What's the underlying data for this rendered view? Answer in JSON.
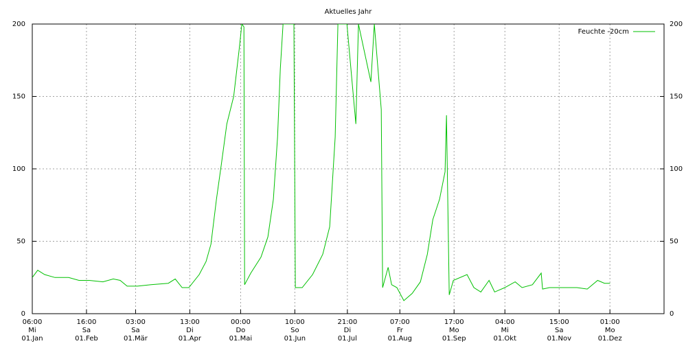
{
  "chart_data": {
    "type": "line",
    "title": "Aktuelles Jahr",
    "x": [
      0.25,
      3.4,
      7.4,
      13.4,
      21.3,
      27.3,
      33.3,
      41.2,
      47.2,
      51.2,
      55.2,
      61.2,
      69.1,
      79.1,
      83.1,
      87.1,
      91.0,
      97.0,
      101.0,
      103.8,
      107.0,
      109.8,
      113.0,
      117.0,
      120.2,
      121.7,
      122.9,
      123.3,
      126.9,
      132.8,
      136.8,
      140.0,
      142.4,
      144.0,
      145.6,
      148.8,
      151.9,
      152.7,
      156.7,
      162.7,
      168.6,
      172.6,
      175.8,
      177.4,
      179.4,
      182.6,
      187.8,
      189.3,
      196.5,
      198.5,
      202.5,
      203.3,
      206.5,
      208.5,
      211.6,
      215.6,
      220.4,
      225.2,
      229.2,
      232.4,
      236.3,
      239.5,
      240.3,
      241.1,
      241.9,
      244.3,
      252.2,
      256.2,
      260.2,
      265.0,
      268.2,
      274.1,
      280.1,
      284.1,
      290.1,
      295.2,
      296.0,
      300.0,
      308.0,
      315.9,
      321.9,
      327.9,
      331.9,
      335.1
    ],
    "series": [
      {
        "name": "Feuchte -20cm",
        "color": "#00c000",
        "values": [
          25,
          30,
          27,
          25,
          25,
          23,
          23,
          22,
          24,
          23,
          19,
          19,
          20,
          21,
          24,
          18,
          18,
          27,
          36,
          48,
          79,
          103,
          131,
          150,
          183,
          200,
          198,
          20,
          28,
          39,
          53,
          79,
          122,
          169,
          200,
          200,
          200,
          18,
          18,
          27,
          41,
          60,
          122,
          200,
          200,
          200,
          131,
          200,
          160,
          200,
          141,
          18,
          32,
          20,
          18,
          9,
          14,
          22,
          41,
          65,
          79,
          98,
          137,
          74,
          13,
          23,
          27,
          18,
          15,
          23,
          15,
          18,
          22,
          18,
          20,
          28,
          17,
          18,
          18,
          18,
          17,
          23,
          21,
          21
        ]
      }
    ],
    "xlim": [
      0.25,
      366.4
    ],
    "xticks": [
      {
        "value": 0.25,
        "label": [
          "06:00",
          "Mi",
          "01.Jan"
        ]
      },
      {
        "value": 31.667,
        "label": [
          "16:00",
          "Sa",
          "01.Feb"
        ]
      },
      {
        "value": 60.125,
        "label": [
          "03:00",
          "Sa",
          "01.Mär"
        ]
      },
      {
        "value": 91.542,
        "label": [
          "13:00",
          "Di",
          "01.Apr"
        ]
      },
      {
        "value": 121,
        "label": [
          "00:00",
          "Do",
          "01.Mai"
        ]
      },
      {
        "value": 152.417,
        "label": [
          "10:00",
          "So",
          "01.Jun"
        ]
      },
      {
        "value": 182.875,
        "label": [
          "21:00",
          "Di",
          "01.Jul"
        ]
      },
      {
        "value": 213.292,
        "label": [
          "07:00",
          "Fr",
          "01.Aug"
        ]
      },
      {
        "value": 244.708,
        "label": [
          "17:00",
          "Mo",
          "01.Sep"
        ]
      },
      {
        "value": 274.167,
        "label": [
          "04:00",
          "Mi",
          "01.Okt"
        ]
      },
      {
        "value": 305.625,
        "label": [
          "15:00",
          "Sa",
          "01.Nov"
        ]
      },
      {
        "value": 335.042,
        "label": [
          "01:00",
          "Mo",
          "01.Dez"
        ]
      }
    ],
    "ylim": [
      0,
      200
    ],
    "yticks": [
      0,
      50,
      100,
      150,
      200
    ],
    "grid": true,
    "legend": "top-right"
  }
}
